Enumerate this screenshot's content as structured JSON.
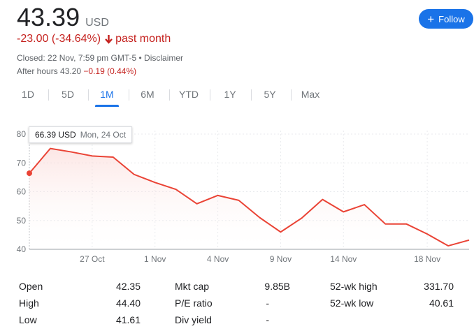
{
  "quote": {
    "price": "43.39",
    "currency": "USD",
    "change": "-23.00 (-34.64%)",
    "period": "past month",
    "closed": "Closed: 22 Nov, 7:59 pm GMT-5 • Disclaimer",
    "after_hours_label": "After hours 43.20",
    "after_hours_change": "−0.19 (0.44%)"
  },
  "follow_button": {
    "label": "Follow"
  },
  "tabs": [
    {
      "label": "1D",
      "active": false
    },
    {
      "label": "5D",
      "active": false
    },
    {
      "label": "1M",
      "active": true
    },
    {
      "label": "6M",
      "active": false
    },
    {
      "label": "YTD",
      "active": false
    },
    {
      "label": "1Y",
      "active": false
    },
    {
      "label": "5Y",
      "active": false
    },
    {
      "label": "Max",
      "active": false
    }
  ],
  "tooltip": {
    "price": "66.39 USD",
    "date": "Mon, 24 Oct"
  },
  "chart_data": {
    "type": "area",
    "ylim": [
      40,
      80
    ],
    "yticks": [
      40,
      50,
      60,
      70,
      80
    ],
    "x": [
      "24 Oct",
      "25 Oct",
      "26 Oct",
      "27 Oct",
      "28 Oct",
      "31 Oct",
      "1 Nov",
      "2 Nov",
      "3 Nov",
      "4 Nov",
      "7 Nov",
      "8 Nov",
      "9 Nov",
      "10 Nov",
      "11 Nov",
      "14 Nov",
      "15 Nov",
      "16 Nov",
      "17 Nov",
      "18 Nov",
      "21 Nov",
      "22 Nov"
    ],
    "values": [
      66.4,
      75.0,
      73.8,
      72.4,
      72.0,
      66.0,
      63.2,
      60.8,
      55.8,
      58.7,
      57.0,
      51.0,
      46.0,
      50.8,
      57.3,
      53.0,
      55.5,
      48.8,
      48.8,
      45.3,
      41.2,
      43.2
    ],
    "xticks": [
      "27 Oct",
      "1 Nov",
      "4 Nov",
      "9 Nov",
      "14 Nov",
      "18 Nov"
    ],
    "line_color": "#ea4335",
    "area_color": "#fad2cf",
    "highlight_point": 0
  },
  "stats": {
    "col1": [
      {
        "label": "Open",
        "value": "42.35"
      },
      {
        "label": "High",
        "value": "44.40"
      },
      {
        "label": "Low",
        "value": "41.61"
      }
    ],
    "col2": [
      {
        "label": "Mkt cap",
        "value": "9.85B"
      },
      {
        "label": "P/E ratio",
        "value": "-"
      },
      {
        "label": "Div yield",
        "value": "-"
      }
    ],
    "col3": [
      {
        "label": "52-wk high",
        "value": "331.70"
      },
      {
        "label": "52-wk low",
        "value": "40.61"
      }
    ]
  }
}
